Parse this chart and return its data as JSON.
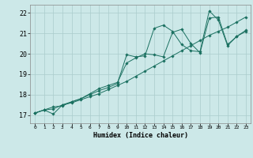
{
  "title": "",
  "xlabel": "Humidex (Indice chaleur)",
  "xlim": [
    -0.5,
    23.5
  ],
  "ylim": [
    16.6,
    22.4
  ],
  "xticks": [
    0,
    1,
    2,
    3,
    4,
    5,
    6,
    7,
    8,
    9,
    10,
    11,
    12,
    13,
    14,
    15,
    16,
    17,
    18,
    19,
    20,
    21,
    22,
    23
  ],
  "yticks": [
    17,
    18,
    19,
    20,
    21,
    22
  ],
  "background_color": "#cce8e8",
  "grid_color": "#aacccc",
  "line_color": "#1a7060",
  "line1_x": [
    0,
    1,
    2,
    3,
    4,
    5,
    6,
    7,
    8,
    9,
    10,
    11,
    12,
    13,
    14,
    15,
    16,
    17,
    18,
    19,
    20,
    21,
    22,
    23
  ],
  "line1_y": [
    17.1,
    17.25,
    17.3,
    17.5,
    17.6,
    17.75,
    17.9,
    18.05,
    18.25,
    18.45,
    18.65,
    18.9,
    19.15,
    19.4,
    19.65,
    19.9,
    20.15,
    20.4,
    20.65,
    20.9,
    21.1,
    21.3,
    21.55,
    21.8
  ],
  "line2_x": [
    0,
    1,
    2,
    3,
    4,
    5,
    6,
    7,
    8,
    9,
    10,
    11,
    12,
    13,
    14,
    15,
    16,
    17,
    18,
    19,
    20,
    21,
    22,
    23
  ],
  "line2_y": [
    17.1,
    17.25,
    17.4,
    17.45,
    17.65,
    17.8,
    18.0,
    18.2,
    18.35,
    18.55,
    19.95,
    19.85,
    19.9,
    21.25,
    21.4,
    21.1,
    20.45,
    20.15,
    20.1,
    22.1,
    21.65,
    20.4,
    20.85,
    21.1
  ],
  "line3_x": [
    0,
    1,
    2,
    3,
    4,
    5,
    6,
    7,
    8,
    9,
    10,
    11,
    12,
    13,
    14,
    15,
    16,
    17,
    18,
    19,
    20,
    21,
    22,
    23
  ],
  "line3_y": [
    17.1,
    17.25,
    17.05,
    17.5,
    17.65,
    17.8,
    18.05,
    18.3,
    18.45,
    18.6,
    19.55,
    19.8,
    20.0,
    19.95,
    19.85,
    21.05,
    21.2,
    20.5,
    20.05,
    21.75,
    21.8,
    20.45,
    20.85,
    21.15
  ],
  "xlabel_fontsize": 6,
  "xtick_fontsize": 4.5,
  "ytick_fontsize": 6,
  "linewidth": 0.7,
  "markersize": 1.8
}
